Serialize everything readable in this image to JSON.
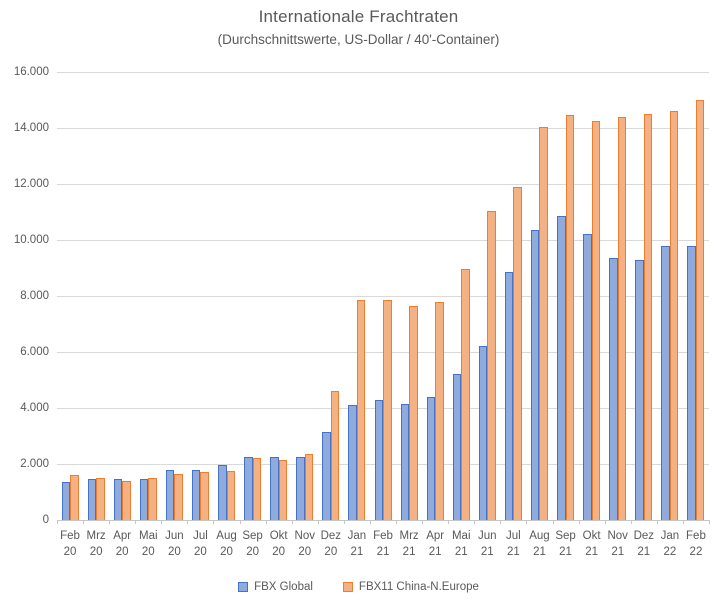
{
  "title": "Internationale Frachtraten",
  "subtitle": "(Durchschnittswerte, US-Dollar / 40'-Container)",
  "colors": {
    "title_text": "#595959",
    "axis_text": "#595959",
    "gridline": "#d9d9d9",
    "axis_line": "#c6c6c6",
    "series1_fill": "#8faadc",
    "series1_border": "#4472c4",
    "series2_fill": "#f4b183",
    "series2_border": "#ed7d31"
  },
  "chart_data": {
    "type": "bar",
    "title": "Internationale Frachtraten",
    "subtitle": "(Durchschnittswerte, US-Dollar / 40'-Container)",
    "xlabel": "",
    "ylabel": "",
    "ylim": [
      0,
      16000
    ],
    "ytick_step": 2000,
    "ytick_labels_top_down": [
      "16.000",
      "14.000",
      "12.000",
      "10.000",
      "8.000",
      "6.000",
      "4.000",
      "2.000",
      "0"
    ],
    "grid": true,
    "legend_position": "bottom",
    "categories": [
      {
        "month": "Feb",
        "year": "20"
      },
      {
        "month": "Mrz",
        "year": "20"
      },
      {
        "month": "Apr",
        "year": "20"
      },
      {
        "month": "Mai",
        "year": "20"
      },
      {
        "month": "Jun",
        "year": "20"
      },
      {
        "month": "Jul",
        "year": "20"
      },
      {
        "month": "Aug",
        "year": "20"
      },
      {
        "month": "Sep",
        "year": "20"
      },
      {
        "month": "Okt",
        "year": "20"
      },
      {
        "month": "Nov",
        "year": "20"
      },
      {
        "month": "Dez",
        "year": "20"
      },
      {
        "month": "Jan",
        "year": "21"
      },
      {
        "month": "Feb",
        "year": "21"
      },
      {
        "month": "Mrz",
        "year": "21"
      },
      {
        "month": "Apr",
        "year": "21"
      },
      {
        "month": "Mai",
        "year": "21"
      },
      {
        "month": "Jun",
        "year": "21"
      },
      {
        "month": "Jul",
        "year": "21"
      },
      {
        "month": "Aug",
        "year": "21"
      },
      {
        "month": "Sep",
        "year": "21"
      },
      {
        "month": "Okt",
        "year": "21"
      },
      {
        "month": "Nov",
        "year": "21"
      },
      {
        "month": "Dez",
        "year": "21"
      },
      {
        "month": "Jan",
        "year": "22"
      },
      {
        "month": "Feb",
        "year": "22"
      }
    ],
    "series": [
      {
        "name": "FBX Global",
        "fill": "#8faadc",
        "border": "#4472c4",
        "values": [
          1350,
          1450,
          1450,
          1450,
          1800,
          1800,
          1950,
          2250,
          2250,
          2250,
          3150,
          4100,
          4300,
          4150,
          4400,
          5200,
          6200,
          8850,
          10350,
          10850,
          10200,
          9350,
          9300,
          9800,
          9800
        ]
      },
      {
        "name": "FBX11 China-N.Europe",
        "fill": "#f4b183",
        "border": "#ed7d31",
        "values": [
          1600,
          1500,
          1400,
          1500,
          1650,
          1700,
          1750,
          2200,
          2150,
          2350,
          4600,
          7850,
          7850,
          7650,
          7800,
          8950,
          11050,
          11900,
          14050,
          14450,
          14250,
          14400,
          14500,
          14600,
          15000
        ]
      }
    ]
  }
}
